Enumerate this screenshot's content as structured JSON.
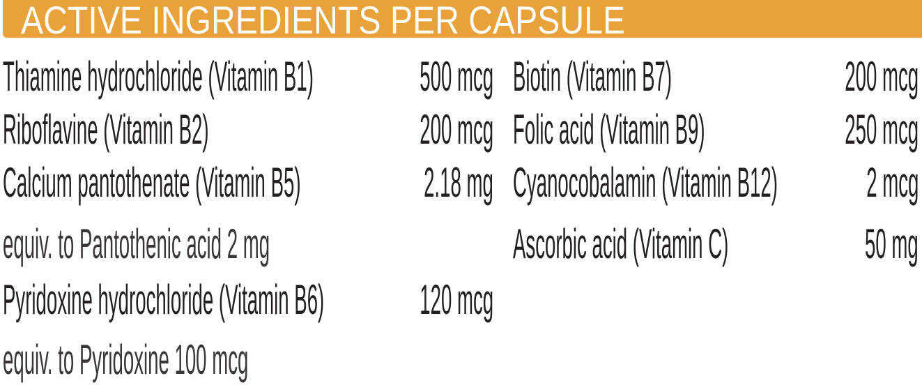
{
  "title": "ACTIVE INGREDIENTS PER CAPSULE",
  "header_color": "#E9A23B",
  "left_column": [
    {
      "name": "Thiamine hydrochloride (Vitamin B1)",
      "amount": "500 mcg"
    },
    {
      "name": "Riboflavine (Vitamin B2)",
      "amount": "200 mcg"
    },
    {
      "name": "Calcium pantothenate (Vitamin B5)",
      "amount": "2.18 mg"
    },
    {
      "name": "equiv. to Pantothenic acid 2 mg",
      "amount": ""
    },
    {
      "name": "Pyridoxine hydrochloride (Vitamin B6)",
      "amount": "120 mcg"
    },
    {
      "name": "equiv. to Pyridoxine 100 mcg",
      "amount": ""
    }
  ],
  "right_column": [
    {
      "name": "Biotin (Vitamin B7)",
      "amount": "200 mcg"
    },
    {
      "name": "Folic acid (Vitamin B9)",
      "amount": "250 mcg"
    },
    {
      "name": "Cyanocobalamin (Vitamin B12)",
      "amount": "2 mcg"
    },
    {
      "name": "Ascorbic acid (Vitamin C)",
      "amount": "50 mg"
    }
  ]
}
